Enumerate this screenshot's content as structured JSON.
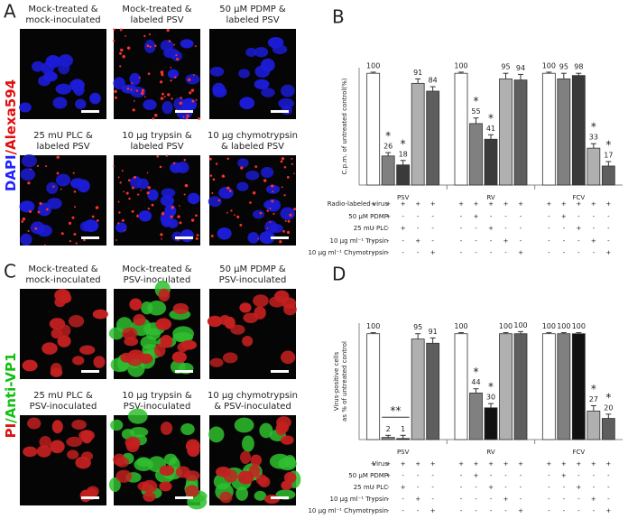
{
  "panels": [
    {
      "label": "A",
      "stain": [
        {
          "text": "DAPI",
          "color": "#2020ff"
        },
        {
          "text": "/Alexa594",
          "color": "#e01010"
        }
      ],
      "images": [
        {
          "caption": [
            "Mock-treated &",
            "mock-inoculated"
          ]
        },
        {
          "caption": [
            "Mock-treated &",
            "labeled PSV"
          ]
        },
        {
          "caption": [
            "50 μM PDMP &",
            "labeled PSV"
          ]
        },
        {
          "caption": [
            "25 mU PLC &",
            "labeled PSV"
          ]
        },
        {
          "caption": [
            "10 μg trypsin &",
            "labeled PSV"
          ]
        },
        {
          "caption": [
            "10 μg chymotrypsin",
            "& labeled PSV"
          ]
        }
      ]
    },
    {
      "label": "C",
      "stain": [
        {
          "text": "PI",
          "color": "#e01010"
        },
        {
          "text": "/Anti-VP1",
          "color": "#10c010"
        }
      ],
      "images": [
        {
          "caption": [
            "Mock-treated &",
            "mock-inoculated"
          ]
        },
        {
          "caption": [
            "Mock-treated &",
            "PSV-inoculated"
          ]
        },
        {
          "caption": [
            "50 μM PDMP &",
            "PSV-inoculated"
          ]
        },
        {
          "caption": [
            "25 mU PLC &",
            "PSV-inoculated"
          ]
        },
        {
          "caption": [
            "10 μg trypsin &",
            "PSV-inoculated"
          ]
        },
        {
          "caption": [
            "10 μg chymotrypsin",
            "& PSV-inoculated"
          ]
        }
      ]
    }
  ],
  "chart_data": [
    {
      "type": "bar",
      "panel_label": "B",
      "ylabel": [
        "C.p.m. of untreated control(%)"
      ],
      "categories": [
        "PSV",
        "RV",
        "FCV"
      ],
      "ylim": [
        0,
        105
      ],
      "series": [
        {
          "color": "#ffffff",
          "values": [
            100,
            100,
            100
          ],
          "errors": [
            1,
            1,
            1
          ],
          "significance": [
            null,
            null,
            null
          ]
        },
        {
          "color": "#808080",
          "values": [
            26,
            55,
            95
          ],
          "errors": [
            3,
            5,
            5
          ],
          "significance": [
            "*",
            "*",
            null
          ]
        },
        {
          "color": "#3a3a3a",
          "values": [
            18,
            41,
            98
          ],
          "errors": [
            4,
            4,
            2
          ],
          "significance": [
            "*",
            "*",
            null
          ]
        },
        {
          "color": "#b0b0b0",
          "values": [
            91,
            95,
            33
          ],
          "errors": [
            4,
            5,
            4
          ],
          "significance": [
            null,
            null,
            "*"
          ]
        },
        {
          "color": "#5e5e5e",
          "values": [
            84,
            94,
            17
          ],
          "errors": [
            4,
            5,
            4
          ],
          "significance": [
            null,
            null,
            "*"
          ]
        }
      ],
      "table": [
        {
          "label": "Radio-labeled virus",
          "signs": [
            "+",
            "+",
            "+",
            "+",
            "+",
            "+",
            "+",
            "+",
            "+",
            "+",
            "+",
            "+",
            "+",
            "+",
            "+"
          ]
        },
        {
          "label": "50 μM PDMP",
          "signs": [
            "-",
            "+",
            "-",
            "-",
            "-",
            "-",
            "+",
            "-",
            "-",
            "-",
            "-",
            "+",
            "-",
            "-",
            "-"
          ]
        },
        {
          "label": "25 mU PLC",
          "signs": [
            "-",
            "-",
            "+",
            "-",
            "-",
            "-",
            "-",
            "+",
            "-",
            "-",
            "-",
            "-",
            "+",
            "-",
            "-"
          ]
        },
        {
          "label": "10 μg ml⁻¹ Trypsin",
          "signs": [
            "-",
            "-",
            "-",
            "+",
            "-",
            "-",
            "-",
            "-",
            "+",
            "-",
            "-",
            "-",
            "-",
            "+",
            "-"
          ]
        },
        {
          "label": "10 μg ml⁻¹ Chymotrypsin",
          "signs": [
            "-",
            "-",
            "-",
            "-",
            "+",
            "-",
            "-",
            "-",
            "-",
            "+",
            "-",
            "-",
            "-",
            "-",
            "+"
          ]
        }
      ]
    },
    {
      "type": "bar",
      "panel_label": "D",
      "ylabel": [
        "Virus-positive cells",
        "as % of untreated control"
      ],
      "categories": [
        "PSV",
        "RV",
        "FCV"
      ],
      "ylim": [
        0,
        110
      ],
      "bracket_label": "**",
      "series": [
        {
          "color": "#ffffff",
          "values": [
            100,
            100,
            100
          ],
          "errors": [
            1,
            1,
            1
          ],
          "significance": [
            null,
            null,
            null
          ]
        },
        {
          "color": "#808080",
          "values": [
            2,
            44,
            100
          ],
          "errors": [
            2,
            4,
            1
          ],
          "significance": [
            null,
            "*",
            null
          ]
        },
        {
          "color": "#111111",
          "values": [
            1,
            30,
            100
          ],
          "errors": [
            3,
            4,
            1
          ],
          "significance": [
            null,
            "*",
            null
          ]
        },
        {
          "color": "#b0b0b0",
          "values": [
            95,
            100,
            27
          ],
          "errors": [
            5,
            1,
            5
          ],
          "significance": [
            null,
            null,
            "*"
          ]
        },
        {
          "color": "#5e5e5e",
          "values": [
            91,
            100,
            20
          ],
          "errors": [
            5,
            2,
            4
          ],
          "significance": [
            null,
            null,
            "*"
          ]
        }
      ],
      "table": [
        {
          "label": "Virus",
          "signs": [
            "+",
            "+",
            "+",
            "+",
            "+",
            "+",
            "+",
            "+",
            "+",
            "+",
            "+",
            "+",
            "+",
            "+",
            "+"
          ]
        },
        {
          "label": "50 μM PDMP",
          "signs": [
            "-",
            "+",
            "-",
            "-",
            "-",
            "-",
            "+",
            "-",
            "-",
            "-",
            "-",
            "+",
            "-",
            "-",
            "-"
          ]
        },
        {
          "label": "25 mU PLC",
          "signs": [
            "-",
            "-",
            "+",
            "-",
            "-",
            "-",
            "-",
            "+",
            "-",
            "-",
            "-",
            "-",
            "+",
            "-",
            "-"
          ]
        },
        {
          "label": "10 μg ml⁻¹ Trypsin",
          "signs": [
            "-",
            "-",
            "-",
            "+",
            "-",
            "-",
            "-",
            "-",
            "+",
            "-",
            "-",
            "-",
            "-",
            "+",
            "-"
          ]
        },
        {
          "label": "10 μg ml⁻¹ Chymotrypsin",
          "signs": [
            "-",
            "-",
            "-",
            "-",
            "+",
            "-",
            "-",
            "-",
            "-",
            "+",
            "-",
            "-",
            "-",
            "-",
            "+"
          ]
        }
      ]
    }
  ]
}
